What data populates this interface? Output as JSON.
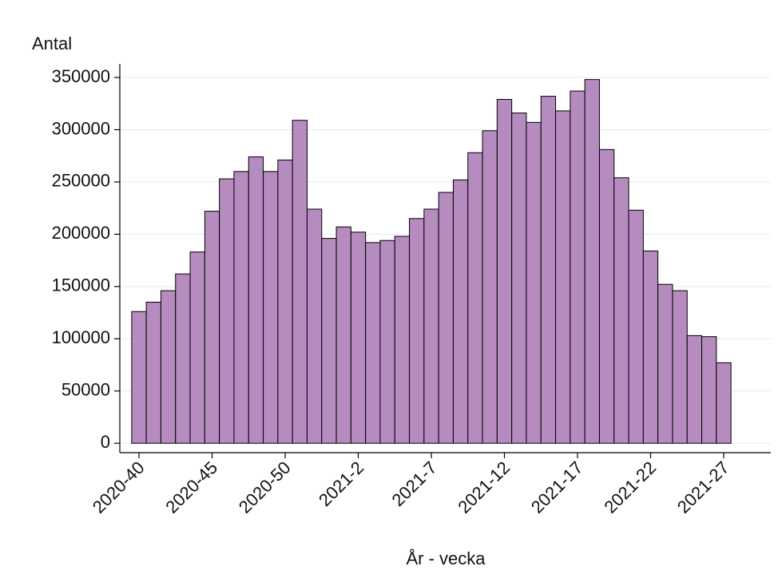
{
  "chart_data": {
    "type": "bar",
    "y_label": "Antal",
    "x_label": "År - vecka",
    "categories": [
      "2020-40",
      null,
      null,
      null,
      null,
      "2020-45",
      null,
      null,
      null,
      null,
      "2020-50",
      null,
      null,
      null,
      null,
      "2021-2",
      null,
      null,
      null,
      null,
      "2021-7",
      null,
      null,
      null,
      null,
      "2021-12",
      null,
      null,
      null,
      null,
      "2021-17",
      null,
      null,
      null,
      null,
      "2021-22",
      null,
      null,
      null,
      null,
      "2021-27"
    ],
    "values": [
      126000,
      135000,
      146000,
      162000,
      183000,
      222000,
      253000,
      260000,
      274000,
      260000,
      271000,
      309000,
      224000,
      196000,
      207000,
      202000,
      192000,
      194000,
      198000,
      215000,
      224000,
      240000,
      252000,
      278000,
      299000,
      329000,
      316000,
      307000,
      332000,
      318000,
      337000,
      348000,
      281000,
      254000,
      223000,
      184000,
      152000,
      146000,
      103000,
      102000,
      77000
    ],
    "color": "#b58bc0",
    "ylim": [
      -9000,
      363000
    ],
    "yticks": [
      0,
      50000,
      100000,
      150000,
      200000,
      250000,
      300000,
      350000
    ],
    "grid": true
  }
}
